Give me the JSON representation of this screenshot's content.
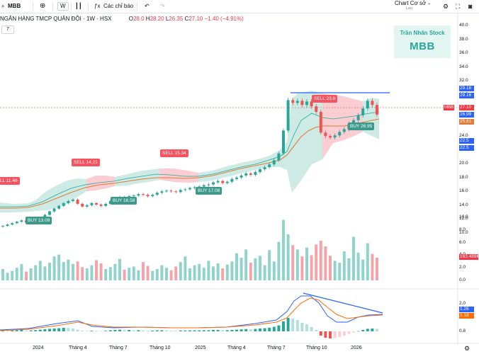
{
  "toolbar": {
    "symbol": "MBB",
    "interval": "W",
    "indicators_label": "Các chỉ báo",
    "layout_name": "Chart Cơ sở",
    "layout_status": "Lưu"
  },
  "legend": {
    "title": "NGÂN HÀNG TMCP QUÂN ĐỘI · 1W · HSX",
    "o_label": "O",
    "o": "28.0",
    "h_label": "H",
    "h": "28.20",
    "l_label": "L",
    "l": "26.35",
    "c_label": "C",
    "c": "27.10",
    "change": "−1.40 (−4.91%)",
    "collapse_count": "7"
  },
  "badge": {
    "author": "Trần Nhân Stock",
    "symbol": "MBB"
  },
  "price_axis": [
    "40.0",
    "38.0",
    "36.0",
    "34.0",
    "32.0",
    "30.0",
    "28.0",
    "26.0",
    "24.0",
    "22.0",
    "20.0",
    "18.0",
    "16.0",
    "14.0",
    "12.0",
    "10.0"
  ],
  "price_tags": {
    "t1": "29.16",
    "t2": "29.16",
    "current": "27.10",
    "t4": "26.99",
    "t5": "25.61",
    "t6": "22.5",
    "t7": "22.5",
    "symbol_tag": "MBB"
  },
  "volume_axis": [
    "10.0",
    "8.0",
    "6.0",
    "4.0",
    "2.0",
    "0.0"
  ],
  "volume_tag": "163.489M",
  "macd_axis": {
    "top": "2.0",
    "v1": "1.26",
    "v2": "1.18",
    "bottom": "0.8"
  },
  "time_axis": [
    "2024",
    "Tháng 4",
    "Tháng 7",
    "Tháng 10",
    "2025",
    "Tháng 4",
    "Tháng 7",
    "Tháng 10",
    "2026"
  ],
  "signals": [
    {
      "kind": "sell",
      "text": "LL 11.46"
    },
    {
      "kind": "buy",
      "text": "BUY 13.09"
    },
    {
      "kind": "sell",
      "text": "SELL 14.21"
    },
    {
      "kind": "buy",
      "text": "BUY 16.58"
    },
    {
      "kind": "sell",
      "text": "SELL 15.34"
    },
    {
      "kind": "buy",
      "text": "BUY 17.08"
    },
    {
      "kind": "sell",
      "text": "SELL 23.6"
    },
    {
      "kind": "buy",
      "text": "BUY 26.95"
    }
  ],
  "chart_data": {
    "type": "candlestick",
    "title": "NGÂN HÀNG TMCP QUÂN ĐỘI · 1W · HSX",
    "close": [
      11.0,
      11.2,
      11.4,
      11.6,
      11.8,
      11.5,
      11.7,
      11.9,
      12.2,
      12.6,
      13.1,
      13.5,
      13.9,
      14.3,
      14.6,
      14.8,
      14.2,
      13.8,
      14.0,
      14.3,
      14.1,
      13.9,
      14.2,
      14.6,
      14.9,
      15.2,
      15.0,
      15.3,
      15.4,
      15.6,
      15.5,
      15.3,
      15.5,
      15.8,
      16.0,
      16.1,
      16.0,
      15.9,
      16.2,
      16.3,
      16.5,
      16.6,
      16.7,
      16.9,
      17.0,
      17.3,
      17.5,
      17.2,
      17.4,
      17.8,
      18.0,
      18.3,
      18.6,
      18.4,
      18.8,
      19.2,
      19.5,
      19.9,
      20.5,
      21.5,
      24.8,
      29.2,
      28.8,
      29.1,
      28.5,
      29.0,
      28.3,
      27.5,
      24.5,
      24.0,
      23.8,
      24.1,
      24.6,
      25.0,
      25.8,
      26.3,
      27.0,
      28.0,
      29.1,
      28.5,
      27.1
    ],
    "ylim": [
      9.5,
      41.0
    ],
    "volume": [
      1.8,
      1.2,
      1.5,
      2.0,
      2.6,
      1.4,
      1.9,
      2.4,
      3.1,
      2.2,
      2.8,
      3.8,
      4.1,
      2.9,
      3.3,
      2.6,
      3.0,
      2.1,
      1.9,
      2.4,
      3.2,
      2.7,
      1.8,
      2.1,
      2.6,
      3.4,
      1.7,
      2.0,
      2.2,
      1.6,
      2.9,
      2.3,
      1.5,
      1.8,
      2.4,
      2.0,
      1.6,
      2.2,
      2.9,
      3.8,
      1.9,
      2.4,
      2.6,
      2.0,
      3.1,
      2.2,
      2.7,
      1.9,
      2.5,
      3.0,
      4.3,
      3.6,
      4.9,
      2.8,
      3.5,
      3.9,
      2.4,
      4.8,
      3.0,
      6.1,
      9.6,
      7.3,
      5.6,
      4.9,
      3.8,
      5.2,
      4.0,
      5.7,
      6.3,
      5.4,
      3.9,
      3.1,
      2.8,
      4.6,
      3.5,
      6.9,
      4.4,
      3.3,
      5.9,
      4.2,
      3.6
    ],
    "volume_ylim": [
      0,
      10
    ],
    "macd_hist": [
      0.05,
      0.04,
      0.06,
      0.08,
      0.1,
      0.06,
      0.07,
      0.09,
      0.12,
      0.15,
      0.18,
      0.2,
      0.22,
      0.25,
      0.24,
      0.2,
      0.12,
      0.05,
      0.02,
      0.04,
      0.03,
      0.02,
      0.04,
      0.08,
      0.1,
      0.12,
      0.1,
      0.1,
      0.08,
      0.08,
      0.06,
      0.04,
      0.05,
      0.07,
      0.08,
      0.07,
      0.05,
      0.04,
      0.06,
      0.06,
      0.07,
      0.07,
      0.07,
      0.08,
      0.08,
      0.1,
      0.1,
      0.08,
      0.08,
      0.1,
      0.12,
      0.14,
      0.16,
      0.14,
      0.17,
      0.2,
      0.22,
      0.26,
      0.32,
      0.42,
      0.7,
      0.95,
      0.9,
      0.8,
      0.6,
      0.5,
      0.3,
      0.1,
      -0.3,
      -0.45,
      -0.5,
      -0.48,
      -0.4,
      -0.3,
      -0.18,
      -0.08,
      0.02,
      0.1,
      0.18,
      0.2,
      0.18
    ]
  }
}
